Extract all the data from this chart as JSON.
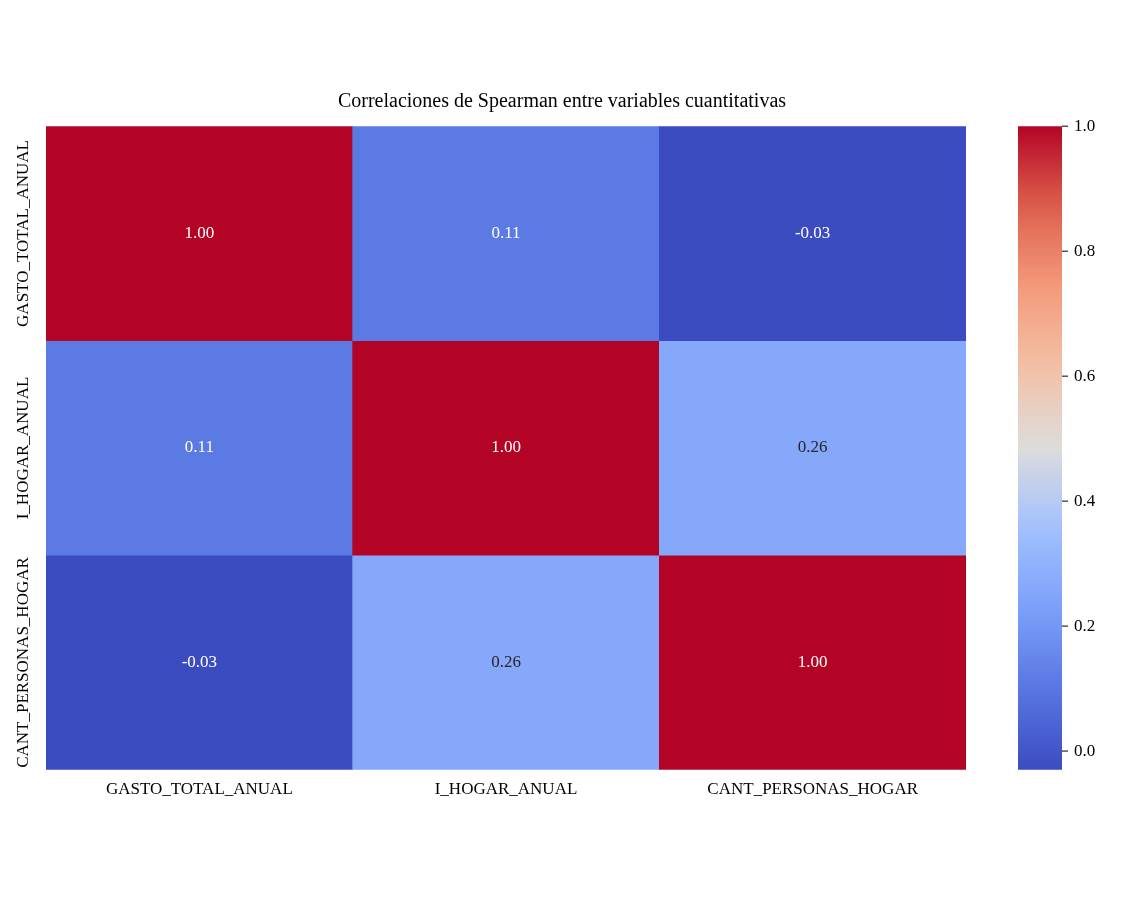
{
  "chart_data": {
    "type": "heatmap",
    "title": "Correlaciones de Spearman entre variables cuantitativas",
    "categories": [
      "GASTO_TOTAL_ANUAL",
      "I_HOGAR_ANUAL",
      "CANT_PERSONAS_HOGAR"
    ],
    "y_categories": [
      "GASTO_TOTAL_ANUAL",
      "I_HOGAR_ANUAL",
      "CANT_PERSONAS_HOGAR"
    ],
    "cells": [
      [
        1.0,
        0.11,
        -0.03
      ],
      [
        0.11,
        1.0,
        0.26
      ],
      [
        -0.03,
        0.26,
        1.0
      ]
    ],
    "cell_labels": [
      [
        "1.00",
        "0.11",
        "-0.03"
      ],
      [
        "0.11",
        "1.00",
        "0.26"
      ],
      [
        "-0.03",
        "0.26",
        "1.00"
      ]
    ],
    "clim": [
      -0.03,
      1.0
    ],
    "cticks": [
      {
        "value": 0,
        "label": "0.0"
      },
      {
        "value": 0.2,
        "label": "0.2"
      },
      {
        "value": 0.4,
        "label": "0.4"
      },
      {
        "value": 0.6,
        "label": "0.6"
      },
      {
        "value": 0.8,
        "label": "0.8"
      },
      {
        "value": 1,
        "label": "1.0"
      }
    ]
  }
}
